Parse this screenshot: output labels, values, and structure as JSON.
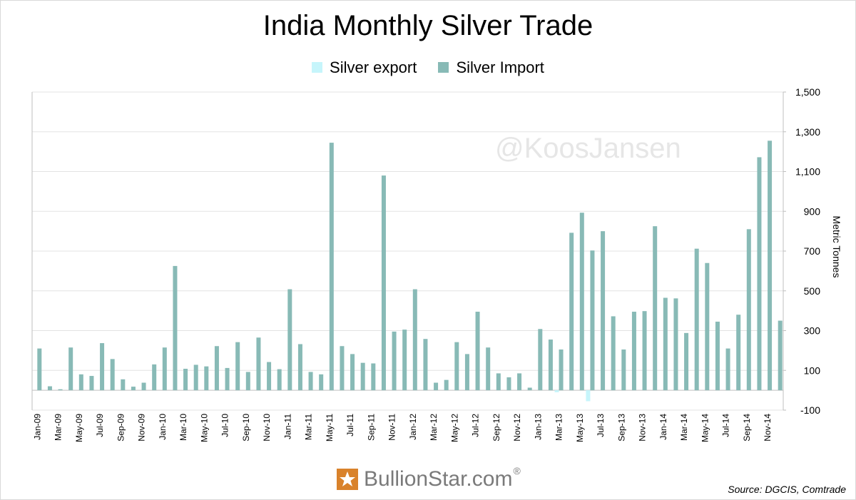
{
  "chart_data": {
    "type": "bar",
    "title": "India Monthly Silver Trade",
    "ylabel": "Metric Tonnes",
    "xlabel": "",
    "ylim": [
      -100,
      1500
    ],
    "yticks": [
      -100,
      100,
      300,
      500,
      700,
      900,
      1100,
      1300,
      1500
    ],
    "ytick_labels": [
      "-100",
      "100",
      "300",
      "500",
      "700",
      "900",
      "1,100",
      "1,300",
      "1,500"
    ],
    "grid": true,
    "legend_position": "top-center",
    "categories": [
      "Jan-09",
      "Feb-09",
      "Mar-09",
      "Apr-09",
      "May-09",
      "Jun-09",
      "Jul-09",
      "Aug-09",
      "Sep-09",
      "Oct-09",
      "Nov-09",
      "Dec-09",
      "Jan-10",
      "Feb-10",
      "Mar-10",
      "Apr-10",
      "May-10",
      "Jun-10",
      "Jul-10",
      "Aug-10",
      "Sep-10",
      "Oct-10",
      "Nov-10",
      "Dec-10",
      "Jan-11",
      "Feb-11",
      "Mar-11",
      "Apr-11",
      "May-11",
      "Jun-11",
      "Jul-11",
      "Aug-11",
      "Sep-11",
      "Oct-11",
      "Nov-11",
      "Dec-11",
      "Jan-12",
      "Feb-12",
      "Mar-12",
      "Apr-12",
      "May-12",
      "Jun-12",
      "Jul-12",
      "Aug-12",
      "Sep-12",
      "Oct-12",
      "Nov-12",
      "Dec-12",
      "Jan-13",
      "Feb-13",
      "Mar-13",
      "Apr-13",
      "May-13",
      "Jun-13",
      "Jul-13",
      "Aug-13",
      "Sep-13",
      "Oct-13",
      "Nov-13",
      "Dec-13",
      "Jan-14",
      "Feb-14",
      "Mar-14",
      "Apr-14",
      "May-14",
      "Jun-14",
      "Jul-14",
      "Aug-14",
      "Sep-14",
      "Oct-14",
      "Nov-14",
      "Dec-14"
    ],
    "xtick_labels": [
      "Jan-09",
      "Mar-09",
      "May-09",
      "Jul-09",
      "Sep-09",
      "Nov-09",
      "Jan-10",
      "Mar-10",
      "May-10",
      "Jul-10",
      "Sep-10",
      "Nov-10",
      "Jan-11",
      "Mar-11",
      "May-11",
      "Jul-11",
      "Sep-11",
      "Nov-11",
      "Jan-12",
      "Mar-12",
      "May-12",
      "Jul-12",
      "Sep-12",
      "Nov-12",
      "Jan-13",
      "Mar-13",
      "May-13",
      "Jul-13",
      "Sep-13",
      "Nov-13",
      "Jan-14",
      "Mar-14",
      "May-14",
      "Jul-14",
      "Sep-14",
      "Nov-14"
    ],
    "series": [
      {
        "name": "Silver export",
        "color": "#c6f5fb",
        "values": [
          0,
          0,
          0,
          0,
          0,
          0,
          0,
          0,
          0,
          0,
          0,
          0,
          0,
          0,
          0,
          0,
          0,
          0,
          0,
          0,
          0,
          0,
          0,
          0,
          0,
          0,
          0,
          0,
          0,
          0,
          0,
          0,
          0,
          0,
          0,
          0,
          0,
          0,
          0,
          0,
          0,
          0,
          0,
          0,
          0,
          0,
          0,
          0,
          0,
          0,
          -10,
          0,
          0,
          -55,
          0,
          0,
          0,
          0,
          0,
          0,
          0,
          0,
          0,
          0,
          0,
          0,
          0,
          0,
          0,
          0,
          0,
          0
        ]
      },
      {
        "name": "Silver Import",
        "color": "#88bab6",
        "values": [
          210,
          20,
          5,
          215,
          80,
          72,
          237,
          157,
          55,
          18,
          38,
          130,
          215,
          625,
          108,
          128,
          120,
          222,
          112,
          242,
          92,
          265,
          142,
          106,
          508,
          232,
          92,
          80,
          1245,
          222,
          182,
          138,
          135,
          1080,
          295,
          305,
          508,
          258,
          38,
          52,
          242,
          182,
          395,
          215,
          85,
          65,
          85,
          13,
          308,
          255,
          205,
          792,
          893,
          703,
          800,
          372,
          205,
          395,
          398,
          825,
          465,
          462,
          288,
          712,
          640,
          345,
          210,
          380,
          810,
          1172,
          1255,
          350
        ]
      }
    ]
  },
  "watermark": "@KoosJansen",
  "footer": {
    "logo_text": "BullionStar.com",
    "logo_reg": "®",
    "source": "Source: DGCIS, Comtrade"
  }
}
